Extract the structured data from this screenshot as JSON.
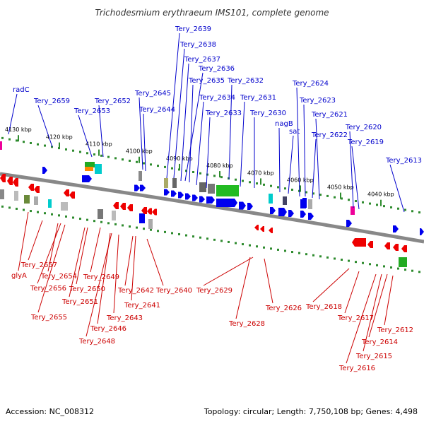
{
  "title": "Trichodesmium erythraeum IMS101, complete genome",
  "footer": {
    "accession": "Accession: NC_008312",
    "info": "Topology: circular; Length: 7,750,108 bp; Genes: 4,498"
  },
  "scale_labels": [
    "4130 kbp",
    "4120 kbp",
    "4110 kbp",
    "4100 kbp",
    "4090 kbp",
    "4080 kbp",
    "4070 kbp",
    "4060 kbp",
    "4050 kbp",
    "4040 kbp"
  ],
  "top_genes": [
    "radC",
    "Tery_2659",
    "Tery_2653",
    "Tery_2652",
    "Tery_2645",
    "Tery_2644",
    "Tery_2639",
    "Tery_2638",
    "Tery_2637",
    "Tery_2636",
    "Tery_2635",
    "Tery_2634",
    "Tery_2633",
    "Tery_2632",
    "Tery_2631",
    "Tery_2630",
    "nagB",
    "sat",
    "Tery_2624",
    "Tery_2623",
    "Tery_2622",
    "Tery_2621",
    "Tery_2620",
    "Tery_2619",
    "Tery_2613"
  ],
  "bottom_genes": [
    "Tery_2657",
    "glyA",
    "Tery_2654",
    "Tery_2656",
    "Tery_2650",
    "Tery_2649",
    "Tery_2651",
    "Tery_2655",
    "Tery_2646",
    "Tery_2648",
    "Tery_2642",
    "Tery_2641",
    "Tery_2643",
    "Tery_2640",
    "Tery_2629",
    "Tery_2628",
    "Tery_2626",
    "Tery_2618",
    "Tery_2617",
    "Tery_2616",
    "Tery_2615",
    "Tery_2614",
    "Tery_2612"
  ],
  "colors": {
    "forward": "#0000ee",
    "reverse": "#ee0000",
    "backbone": "#888888",
    "ticks": "#2e8b2e",
    "label_top": "#0000cc",
    "label_bot": "#cc0000"
  }
}
